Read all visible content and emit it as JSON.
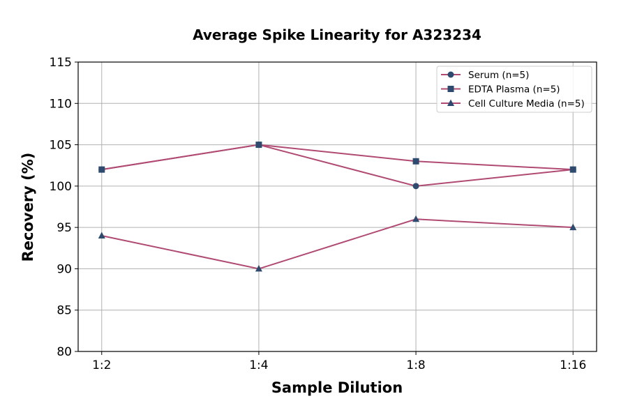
{
  "chart_data": {
    "type": "line",
    "title": "Average Spike Linearity for A323234",
    "xlabel": "Sample Dilution",
    "ylabel": "Recovery (%)",
    "categories": [
      "1:2",
      "1:4",
      "1:8",
      "1:16"
    ],
    "ylim": [
      80,
      115
    ],
    "yticks": [
      80,
      85,
      90,
      95,
      100,
      105,
      110,
      115
    ],
    "grid": true,
    "legend_position": "top-right",
    "line_color": "#b04a72",
    "marker_color": "#2e4a6e",
    "series": [
      {
        "name": "Serum (n=5)",
        "marker": "circle",
        "values": [
          102,
          105,
          100,
          102
        ]
      },
      {
        "name": "EDTA Plasma (n=5)",
        "marker": "square",
        "values": [
          102,
          105,
          103,
          102
        ]
      },
      {
        "name": "Cell Culture Media (n=5)",
        "marker": "triangle",
        "values": [
          94,
          90,
          96,
          95
        ]
      }
    ]
  }
}
